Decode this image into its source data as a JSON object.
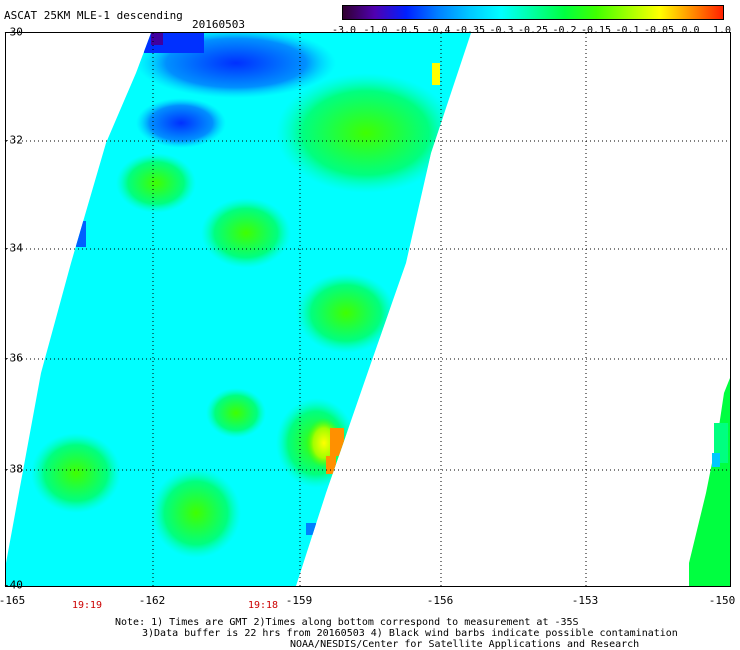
{
  "header": {
    "title": "ASCAT 25KM MLE-1 descending",
    "date": "20160503"
  },
  "colorbar": {
    "ticks": [
      "-3.0",
      "-1.0",
      "-0.5",
      "-0.4",
      "-0.35",
      "-0.3",
      "-0.25",
      "-0.2",
      "-0.15",
      "-0.1",
      "-0.05",
      "0.0",
      "1.0"
    ],
    "colors": [
      "#300030",
      "#5000b0",
      "#0020ff",
      "#0080ff",
      "#00c8ff",
      "#00ffff",
      "#00ffa0",
      "#00ff40",
      "#40ff00",
      "#a0ff00",
      "#ffff00",
      "#ff9000",
      "#ff2000"
    ]
  },
  "map": {
    "lat_labels": [
      "-30",
      "-32",
      "-34",
      "-36",
      "-38",
      "-40"
    ],
    "lon_labels": [
      "-165",
      "-162",
      "-159",
      "-156",
      "-153",
      "-150"
    ],
    "time_labels": [
      "19:19",
      "19:18"
    ]
  },
  "notes": {
    "line1": "Note: 1) Times are GMT 2)Times along bottom correspond to measurement at -35S",
    "line2": "3)Data buffer is 22 hrs from 20160503 4) Black wind barbs indicate possible contamination",
    "line3": "NOAA/NESDIS/Center for Satellite Applications and Research"
  }
}
